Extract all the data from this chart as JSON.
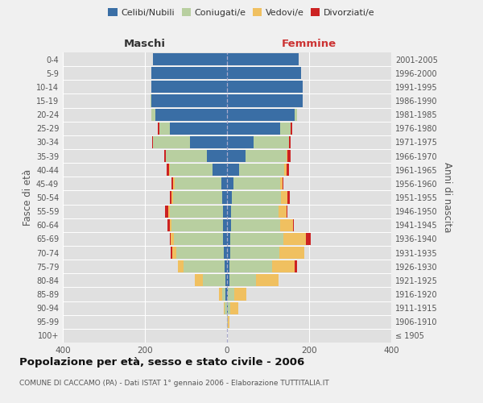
{
  "age_groups": [
    "100+",
    "95-99",
    "90-94",
    "85-89",
    "80-84",
    "75-79",
    "70-74",
    "65-69",
    "60-64",
    "55-59",
    "50-54",
    "45-49",
    "40-44",
    "35-39",
    "30-34",
    "25-29",
    "20-24",
    "15-19",
    "10-14",
    "5-9",
    "0-4"
  ],
  "birth_years": [
    "≤ 1905",
    "1906-1910",
    "1911-1915",
    "1916-1920",
    "1921-1925",
    "1926-1930",
    "1931-1935",
    "1936-1940",
    "1941-1945",
    "1946-1950",
    "1951-1955",
    "1956-1960",
    "1961-1965",
    "1966-1970",
    "1971-1975",
    "1976-1980",
    "1981-1985",
    "1986-1990",
    "1991-1995",
    "1996-2000",
    "2001-2005"
  ],
  "males": {
    "celibi": [
      0,
      0,
      0,
      3,
      3,
      5,
      8,
      9,
      10,
      10,
      12,
      13,
      35,
      50,
      90,
      140,
      175,
      185,
      185,
      185,
      180
    ],
    "coniugati": [
      0,
      0,
      5,
      8,
      55,
      100,
      115,
      120,
      125,
      130,
      120,
      115,
      105,
      100,
      90,
      25,
      10,
      2,
      0,
      0,
      0
    ],
    "vedovi": [
      0,
      0,
      3,
      8,
      20,
      15,
      10,
      8,
      5,
      3,
      3,
      3,
      2,
      0,
      0,
      0,
      0,
      0,
      0,
      0,
      0
    ],
    "divorziati": [
      0,
      0,
      0,
      0,
      0,
      0,
      5,
      3,
      5,
      8,
      5,
      5,
      5,
      3,
      3,
      3,
      0,
      0,
      0,
      0,
      0
    ]
  },
  "females": {
    "nubili": [
      0,
      0,
      2,
      2,
      5,
      5,
      8,
      8,
      10,
      10,
      12,
      15,
      30,
      45,
      65,
      130,
      165,
      185,
      185,
      180,
      175
    ],
    "coniugate": [
      0,
      2,
      5,
      15,
      65,
      105,
      120,
      130,
      120,
      115,
      120,
      115,
      110,
      100,
      85,
      25,
      5,
      0,
      0,
      0,
      0
    ],
    "vedove": [
      0,
      3,
      20,
      30,
      55,
      55,
      60,
      55,
      30,
      20,
      15,
      5,
      5,
      2,
      0,
      0,
      0,
      0,
      0,
      0,
      0
    ],
    "divorziate": [
      0,
      0,
      0,
      0,
      0,
      5,
      0,
      10,
      3,
      3,
      5,
      3,
      5,
      8,
      5,
      3,
      0,
      0,
      0,
      0,
      0
    ]
  },
  "colors": {
    "celibi_nubili": "#3a6ea5",
    "coniugati": "#b8cfa0",
    "vedovi": "#f0c060",
    "divorziati": "#cc2222"
  },
  "title": "Popolazione per età, sesso e stato civile - 2006",
  "subtitle": "COMUNE DI CACCAMO (PA) - Dati ISTAT 1° gennaio 2006 - Elaborazione TUTTITALIA.IT",
  "ylabel_left": "Fasce di età",
  "ylabel_right": "Anni di nascita",
  "xlabel_left": "Maschi",
  "xlabel_right": "Femmine",
  "xlim": 400,
  "bg_color": "#f0f0f0",
  "plot_bg": "#e0e0e0"
}
